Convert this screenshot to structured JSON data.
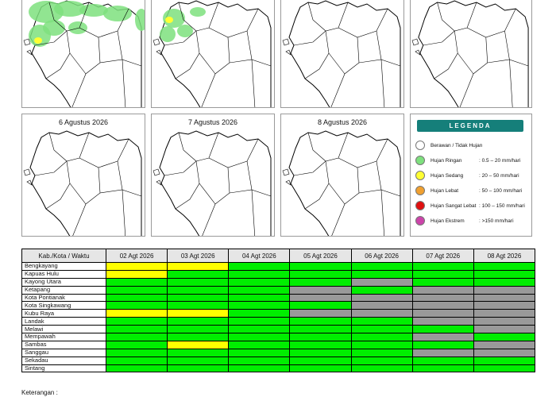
{
  "maps": [
    {
      "title": "",
      "rain": "heavy"
    },
    {
      "title": "",
      "rain": "medium"
    },
    {
      "title": "",
      "rain": "none"
    },
    {
      "title": "",
      "rain": "none"
    },
    {
      "title": "6 Agustus 2026",
      "rain": "none"
    },
    {
      "title": "7 Agustus 2026",
      "rain": "none"
    },
    {
      "title": "8 Agustus 2026",
      "rain": "none"
    }
  ],
  "legend": {
    "title": "LEGENDA",
    "items": [
      {
        "label": "Berawan / Tidak Hujan",
        "range": "",
        "color": "#ffffff"
      },
      {
        "label": "Hujan Ringan",
        "range": ": 0.5 – 20 mm/hari",
        "color": "#7ee07e"
      },
      {
        "label": "Hujan Sedang",
        "range": ": 20 – 50 mm/hari",
        "color": "#ffff33"
      },
      {
        "label": "Hujan Lebat",
        "range": ": 50 – 100 mm/hari",
        "color": "#f0a030"
      },
      {
        "label": "Hujan Sangat Lebat",
        "range": ": 100 – 150 mm/hari",
        "color": "#e01010"
      },
      {
        "label": "Hujan Ekstrem",
        "range": ": >150 mm/hari",
        "color": "#cc44aa"
      }
    ]
  },
  "table": {
    "header": "Kab./Kota / Waktu",
    "dates": [
      "02 Agt 2026",
      "03 Agt 2026",
      "04 Agt 2026",
      "05 Agt 2026",
      "06 Agt 2026",
      "07 Agt 2026",
      "08 Agt 2026"
    ],
    "colors": {
      "G": "#00ee00",
      "Y": "#ffff00",
      "X": "#999999"
    },
    "rows": [
      {
        "name": "Bengkayang",
        "cells": [
          "Y",
          "Y",
          "G",
          "G",
          "G",
          "G",
          "G"
        ]
      },
      {
        "name": "Kapuas Hulu",
        "cells": [
          "Y",
          "G",
          "G",
          "G",
          "G",
          "G",
          "G"
        ]
      },
      {
        "name": "Kayong Utara",
        "cells": [
          "G",
          "G",
          "G",
          "G",
          "X",
          "G",
          "G"
        ]
      },
      {
        "name": "Ketapang",
        "cells": [
          "G",
          "G",
          "G",
          "X",
          "G",
          "X",
          "X"
        ]
      },
      {
        "name": "Kota Pontianak",
        "cells": [
          "G",
          "G",
          "G",
          "X",
          "X",
          "X",
          "X"
        ]
      },
      {
        "name": "Kota Singkawang",
        "cells": [
          "G",
          "G",
          "G",
          "G",
          "X",
          "X",
          "X"
        ]
      },
      {
        "name": "Kubu Raya",
        "cells": [
          "Y",
          "Y",
          "G",
          "X",
          "X",
          "X",
          "X"
        ]
      },
      {
        "name": "Landak",
        "cells": [
          "G",
          "G",
          "G",
          "G",
          "G",
          "X",
          "X"
        ]
      },
      {
        "name": "Melawi",
        "cells": [
          "G",
          "G",
          "G",
          "G",
          "G",
          "G",
          "X"
        ]
      },
      {
        "name": "Mempawah",
        "cells": [
          "G",
          "G",
          "G",
          "G",
          "G",
          "X",
          "G"
        ]
      },
      {
        "name": "Sambas",
        "cells": [
          "G",
          "Y",
          "G",
          "G",
          "G",
          "G",
          "X"
        ]
      },
      {
        "name": "Sanggau",
        "cells": [
          "G",
          "G",
          "G",
          "G",
          "G",
          "X",
          "X"
        ]
      },
      {
        "name": "Sekadau",
        "cells": [
          "G",
          "G",
          "G",
          "G",
          "G",
          "G",
          "G"
        ]
      },
      {
        "name": "Sintang",
        "cells": [
          "G",
          "G",
          "G",
          "G",
          "G",
          "G",
          "G"
        ]
      }
    ]
  },
  "footer_note": "Keterangan :"
}
